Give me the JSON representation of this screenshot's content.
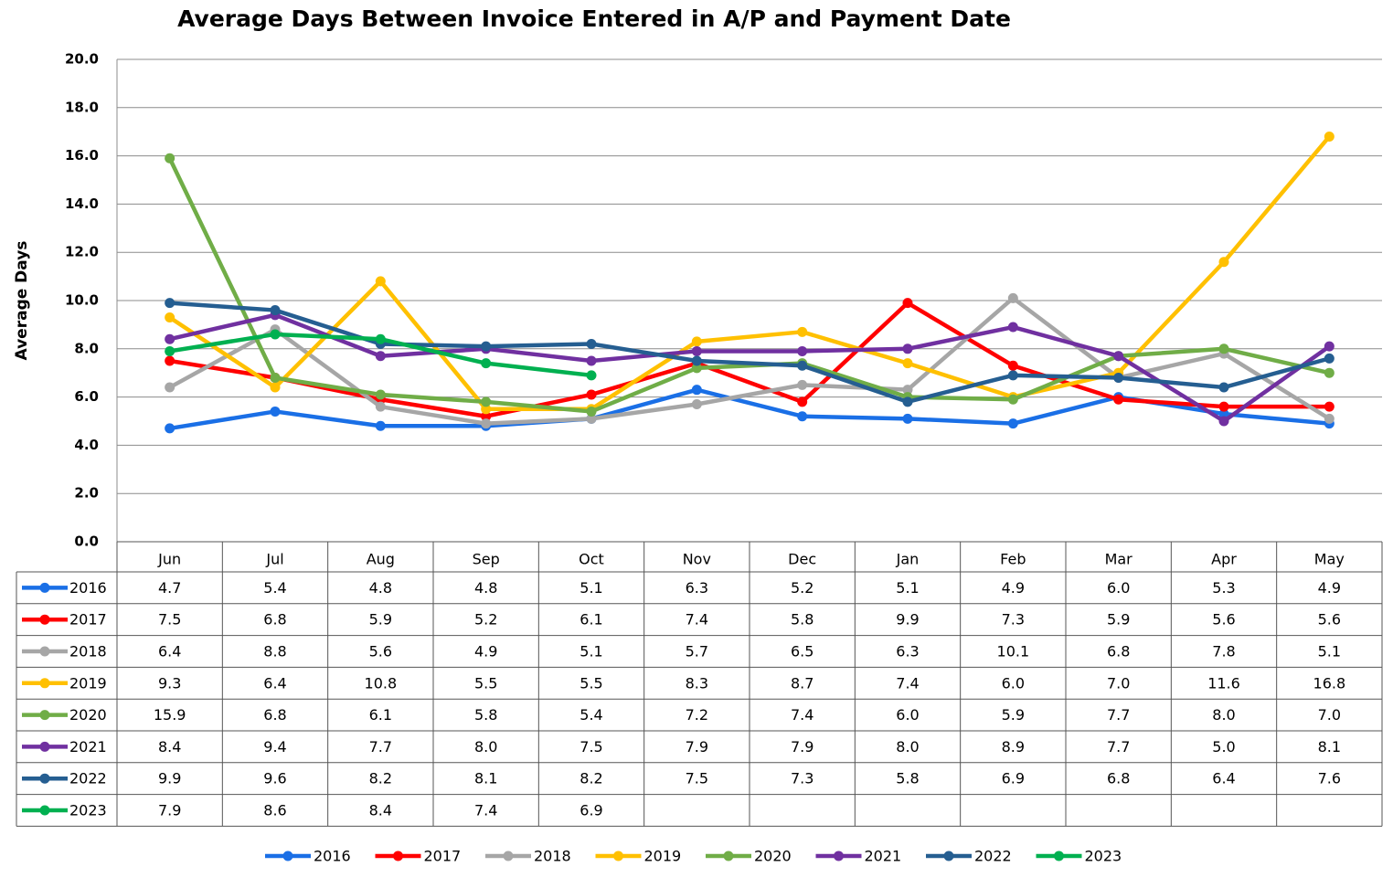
{
  "chart_data": {
    "type": "line",
    "title": "Average Days Between Invoice Entered in A/P and Payment Date",
    "y_label": "Average Days",
    "categories": [
      "Jun",
      "Jul",
      "Aug",
      "Sep",
      "Oct",
      "Nov",
      "Dec",
      "Jan",
      "Feb",
      "Mar",
      "Apr",
      "May"
    ],
    "ylim": [
      0,
      20
    ],
    "yticks": [
      {
        "value": 0,
        "label": "0.0"
      },
      {
        "value": 2,
        "label": "2.0"
      },
      {
        "value": 4,
        "label": "4.0"
      },
      {
        "value": 6,
        "label": "6.0"
      },
      {
        "value": 8,
        "label": "8.0"
      },
      {
        "value": 10,
        "label": "10.0"
      },
      {
        "value": 12,
        "label": "12.0"
      },
      {
        "value": 14,
        "label": "14.0"
      },
      {
        "value": 16,
        "label": "16.0"
      },
      {
        "value": 18,
        "label": "18.0"
      },
      {
        "value": 20,
        "label": "20.0"
      }
    ],
    "grid": true,
    "legend": "bottom",
    "series": [
      {
        "name": "2016",
        "color": "#1a6fe6",
        "values": [
          4.7,
          5.4,
          4.8,
          4.8,
          5.1,
          6.3,
          5.2,
          5.1,
          4.9,
          6,
          5.3,
          4.9
        ],
        "value_labels": [
          "4.7",
          "5.4",
          "4.8",
          "4.8",
          "5.1",
          "6.3",
          "5.2",
          "5.1",
          "4.9",
          "6.0",
          "5.3",
          "4.9"
        ]
      },
      {
        "name": "2017",
        "color": "#ff0000",
        "values": [
          7.5,
          6.8,
          5.9,
          5.2,
          6.1,
          7.4,
          5.8,
          9.9,
          7.3,
          5.9,
          5.6,
          5.6
        ],
        "value_labels": [
          "7.5",
          "6.8",
          "5.9",
          "5.2",
          "6.1",
          "7.4",
          "5.8",
          "9.9",
          "7.3",
          "5.9",
          "5.6",
          "5.6"
        ]
      },
      {
        "name": "2018",
        "color": "#a6a6a6",
        "values": [
          6.4,
          8.8,
          5.6,
          4.9,
          5.1,
          5.7,
          6.5,
          6.3,
          10.1,
          6.8,
          7.8,
          5.1
        ],
        "value_labels": [
          "6.4",
          "8.8",
          "5.6",
          "4.9",
          "5.1",
          "5.7",
          "6.5",
          "6.3",
          "10.1",
          "6.8",
          "7.8",
          "5.1"
        ]
      },
      {
        "name": "2019",
        "color": "#ffc000",
        "values": [
          9.3,
          6.4,
          10.8,
          5.5,
          5.5,
          8.3,
          8.7,
          7.4,
          6,
          7,
          11.6,
          16.8
        ],
        "value_labels": [
          "9.3",
          "6.4",
          "10.8",
          "5.5",
          "5.5",
          "8.3",
          "8.7",
          "7.4",
          "6.0",
          "7.0",
          "11.6",
          "16.8"
        ]
      },
      {
        "name": "2020",
        "color": "#70ad47",
        "values": [
          15.9,
          6.8,
          6.1,
          5.8,
          5.4,
          7.2,
          7.4,
          6,
          5.9,
          7.7,
          8,
          7
        ],
        "value_labels": [
          "15.9",
          "6.8",
          "6.1",
          "5.8",
          "5.4",
          "7.2",
          "7.4",
          "6.0",
          "5.9",
          "7.7",
          "8.0",
          "7.0"
        ]
      },
      {
        "name": "2021",
        "color": "#7030a0",
        "values": [
          8.4,
          9.4,
          7.7,
          8,
          7.5,
          7.9,
          7.9,
          8,
          8.9,
          7.7,
          5,
          8.1
        ],
        "value_labels": [
          "8.4",
          "9.4",
          "7.7",
          "8.0",
          "7.5",
          "7.9",
          "7.9",
          "8.0",
          "8.9",
          "7.7",
          "5.0",
          "8.1"
        ]
      },
      {
        "name": "2022",
        "color": "#255e91",
        "values": [
          9.9,
          9.6,
          8.2,
          8.1,
          8.2,
          7.5,
          7.3,
          5.8,
          6.9,
          6.8,
          6.4,
          7.6
        ],
        "value_labels": [
          "9.9",
          "9.6",
          "8.2",
          "8.1",
          "8.2",
          "7.5",
          "7.3",
          "5.8",
          "6.9",
          "6.8",
          "6.4",
          "7.6"
        ]
      },
      {
        "name": "2023",
        "color": "#00b050",
        "values": [
          7.9,
          8.6,
          8.4,
          7.4,
          6.9,
          null,
          null,
          null,
          null,
          null,
          null,
          null
        ],
        "value_labels": [
          "7.9",
          "8.6",
          "8.4",
          "7.4",
          "6.9",
          null,
          null,
          null,
          null,
          null,
          null,
          null
        ]
      }
    ]
  }
}
